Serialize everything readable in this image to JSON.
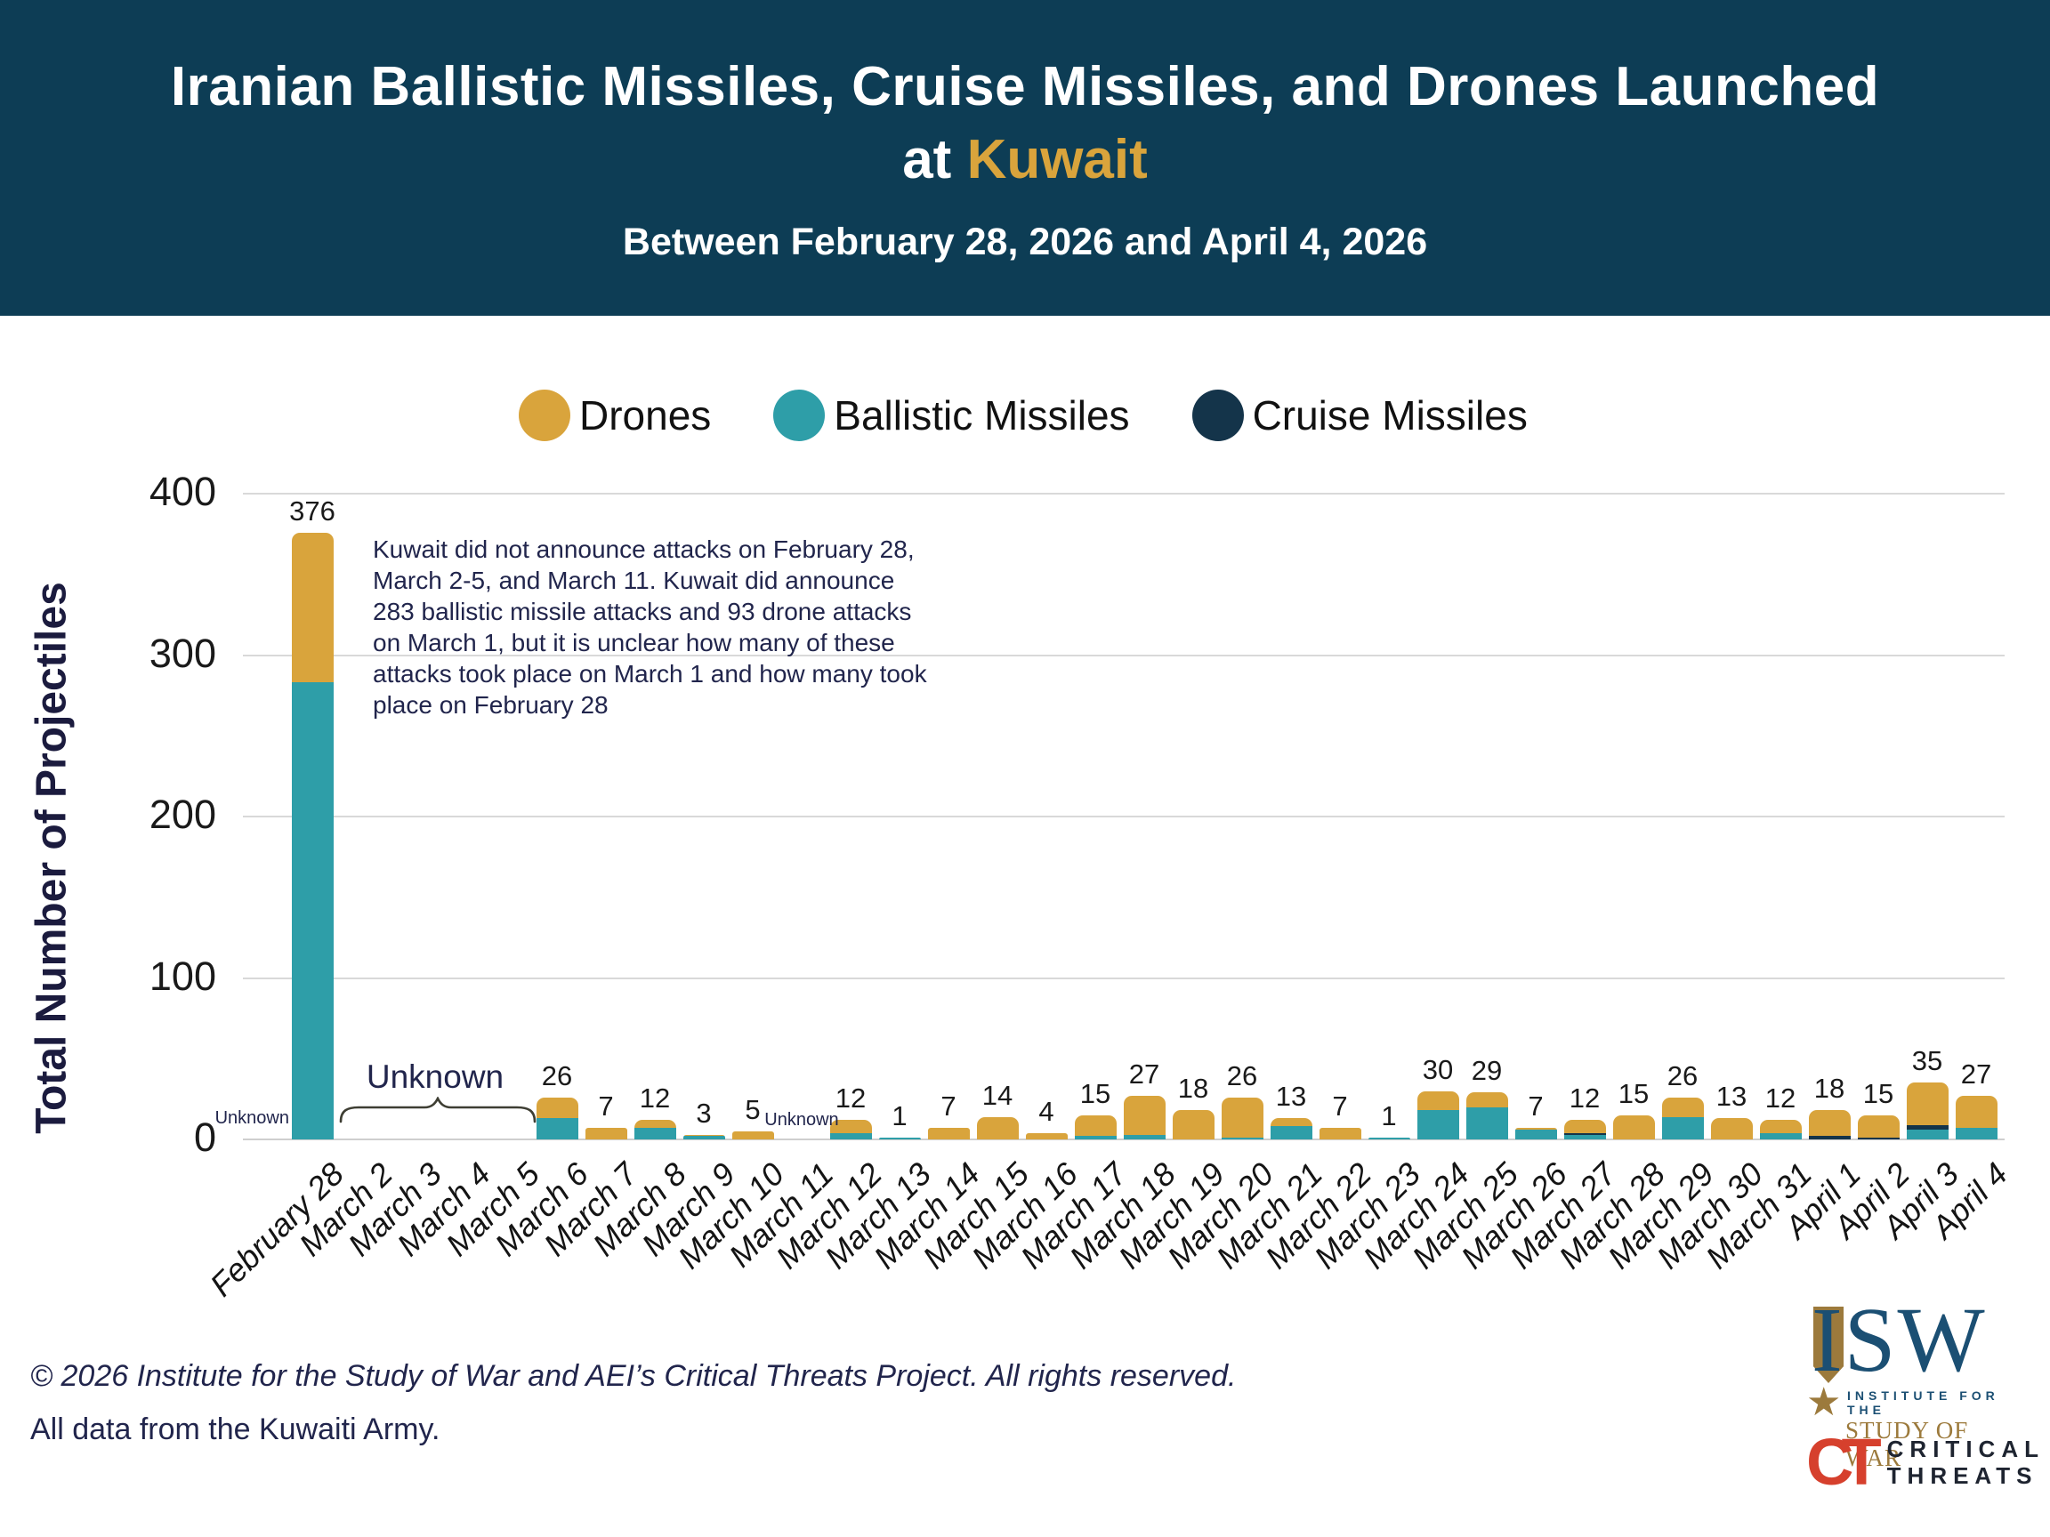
{
  "header": {
    "title_line1": "Iranian Ballistic Missiles, Cruise Missiles, and Drones Launched",
    "title_line2_prefix": "at ",
    "title_line2_highlight": "Kuwait",
    "subtitle": "Between February 28, 2026 and April 4, 2026",
    "bg_color": "#0D3D55",
    "highlight_color": "#D9A43C"
  },
  "legend": [
    {
      "label": "Drones",
      "color": "#D9A43C"
    },
    {
      "label": "Ballistic Missiles",
      "color": "#2E9EA8"
    },
    {
      "label": "Cruise Missiles",
      "color": "#14344A"
    }
  ],
  "chart_data": {
    "type": "bar",
    "stacked": true,
    "ylabel": "Total Number of Projectiles",
    "ylim": [
      0,
      400
    ],
    "yticks": [
      0,
      100,
      200,
      300,
      400
    ],
    "grid": "horizontal",
    "legend_position": "top",
    "categories": [
      "February 28",
      "March 2",
      "March 3",
      "March 4",
      "March 5",
      "March 6",
      "March 7",
      "March 8",
      "March 9",
      "March 10",
      "March 11",
      "March 12",
      "March 13",
      "March 14",
      "March 15",
      "March 16",
      "March 17",
      "March 18",
      "March 19",
      "March 20",
      "March 21",
      "March 22",
      "March 23",
      "March 24",
      "March 25",
      "March 26",
      "March 27",
      "March 28",
      "March 29",
      "March 30",
      "March 31",
      "April 1",
      "April 2",
      "April 3",
      "April 4"
    ],
    "series": [
      {
        "name": "Ballistic Missiles",
        "color": "#2E9EA8",
        "values": [
          283,
          0,
          0,
          0,
          0,
          13,
          0,
          7,
          2,
          0,
          0,
          4,
          1,
          0,
          0,
          0,
          2,
          3,
          0,
          1,
          8,
          0,
          1,
          18,
          20,
          6,
          3,
          0,
          14,
          0,
          4,
          0,
          0,
          6,
          7
        ]
      },
      {
        "name": "Cruise Missiles",
        "color": "#14344A",
        "values": [
          0,
          0,
          0,
          0,
          0,
          0,
          0,
          0,
          0,
          0,
          0,
          0,
          0,
          0,
          0,
          0,
          0,
          0,
          0,
          0,
          0,
          0,
          0,
          0,
          0,
          0,
          1,
          0,
          0,
          0,
          0,
          2,
          1,
          3,
          0
        ]
      },
      {
        "name": "Drones",
        "color": "#D9A43C",
        "values": [
          93,
          0,
          0,
          0,
          0,
          13,
          7,
          5,
          1,
          5,
          0,
          8,
          0,
          7,
          14,
          4,
          13,
          24,
          18,
          25,
          5,
          7,
          0,
          12,
          9,
          1,
          8,
          15,
          12,
          13,
          8,
          16,
          14,
          26,
          20
        ]
      }
    ],
    "bar_total_labels": [
      376,
      null,
      null,
      null,
      null,
      26,
      7,
      12,
      3,
      5,
      null,
      12,
      1,
      7,
      14,
      4,
      15,
      27,
      18,
      26,
      13,
      7,
      1,
      30,
      29,
      7,
      12,
      15,
      26,
      13,
      12,
      18,
      15,
      35,
      27
    ],
    "annotations": {
      "note_text": "Kuwait did not announce attacks on February 28, March 2-5, and March 11. Kuwait did announce 283 ballistic missile attacks and 93 drone attacks on March 1, but it is unclear how many of these attacks took place on March 1 and how many took place on February 28",
      "unknown_feb28": "Unknown",
      "unknown_brace_label": "Unknown",
      "unknown_brace_span": [
        "March 2",
        "March 5"
      ],
      "unknown_march11": "Unknown"
    }
  },
  "footer": {
    "line1": "© 2026 Institute for the Study of War and AEI’s Critical Threats Project. All rights reserved.",
    "line2": "All data from the Kuwaiti Army."
  },
  "logos": {
    "isw": {
      "acronym": "ISW",
      "star": "★",
      "line1": "INSTITUTE FOR THE",
      "line2": "STUDY OF WAR",
      "blue": "#1B4F73",
      "gold": "#9C7A3C"
    },
    "ct": {
      "monogram": "CT",
      "line1": "CRITICAL",
      "line2": "THREATS",
      "red": "#D6402D",
      "dark": "#1E2430"
    }
  }
}
